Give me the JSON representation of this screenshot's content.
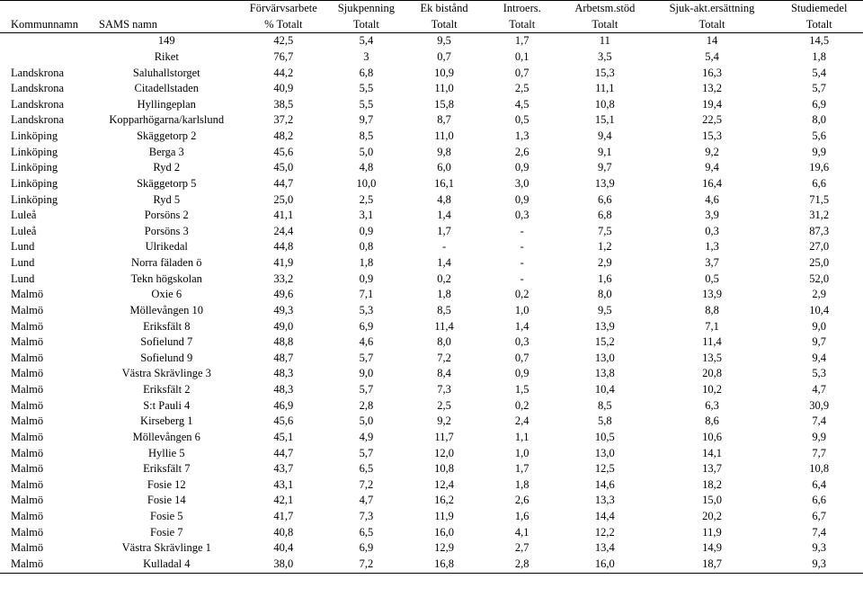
{
  "header1": [
    "",
    "",
    "Förvärvsarbete",
    "Sjukpenning",
    "Ek bistånd",
    "Introers.",
    "Arbetsm.stöd",
    "Sjuk-akt.ersättning",
    "Studiemedel"
  ],
  "header2": [
    "Kommunnamn",
    "SAMS namn",
    "% Totalt",
    "Totalt",
    "Totalt",
    "Totalt",
    "Totalt",
    "Totalt",
    "Totalt"
  ],
  "rows": [
    [
      "",
      "149",
      "42,5",
      "5,4",
      "9,5",
      "1,7",
      "11",
      "14",
      "14,5"
    ],
    [
      "",
      "Riket",
      "76,7",
      "3",
      "0,7",
      "0,1",
      "3,5",
      "5,4",
      "1,8"
    ],
    [
      "Landskrona",
      "Saluhallstorget",
      "44,2",
      "6,8",
      "10,9",
      "0,7",
      "15,3",
      "16,3",
      "5,4"
    ],
    [
      "Landskrona",
      "Citadellstaden",
      "40,9",
      "5,5",
      "11,0",
      "2,5",
      "11,1",
      "13,2",
      "5,7"
    ],
    [
      "Landskrona",
      "Hyllingeplan",
      "38,5",
      "5,5",
      "15,8",
      "4,5",
      "10,8",
      "19,4",
      "6,9"
    ],
    [
      "Landskrona",
      "Kopparhögarna/karlslund",
      "37,2",
      "9,7",
      "8,7",
      "0,5",
      "15,1",
      "22,5",
      "8,0"
    ],
    [
      "Linköping",
      "Skäggetorp 2",
      "48,2",
      "8,5",
      "11,0",
      "1,3",
      "9,4",
      "15,3",
      "5,6"
    ],
    [
      "Linköping",
      "Berga 3",
      "45,6",
      "5,0",
      "9,8",
      "2,6",
      "9,1",
      "9,2",
      "9,9"
    ],
    [
      "Linköping",
      "Ryd 2",
      "45,0",
      "4,8",
      "6,0",
      "0,9",
      "9,7",
      "9,4",
      "19,6"
    ],
    [
      "Linköping",
      "Skäggetorp 5",
      "44,7",
      "10,0",
      "16,1",
      "3,0",
      "13,9",
      "16,4",
      "6,6"
    ],
    [
      "Linköping",
      "Ryd 5",
      "25,0",
      "2,5",
      "4,8",
      "0,9",
      "6,6",
      "4,6",
      "71,5"
    ],
    [
      "Luleå",
      "Porsöns 2",
      "41,1",
      "3,1",
      "1,4",
      "0,3",
      "6,8",
      "3,9",
      "31,2"
    ],
    [
      "Luleå",
      "Porsöns 3",
      "24,4",
      "0,9",
      "1,7",
      "-",
      "7,5",
      "0,3",
      "87,3"
    ],
    [
      "Lund",
      "Ulrikedal",
      "44,8",
      "0,8",
      "-",
      "-",
      "1,2",
      "1,3",
      "27,0"
    ],
    [
      "Lund",
      "Norra fäladen ö",
      "41,9",
      "1,8",
      "1,4",
      "-",
      "2,9",
      "3,7",
      "25,0"
    ],
    [
      "Lund",
      "Tekn högskolan",
      "33,2",
      "0,9",
      "0,2",
      "-",
      "1,6",
      "0,5",
      "52,0"
    ],
    [
      "Malmö",
      "Oxie 6",
      "49,6",
      "7,1",
      "1,8",
      "0,2",
      "8,0",
      "13,9",
      "2,9"
    ],
    [
      "Malmö",
      "Möllevången 10",
      "49,3",
      "5,3",
      "8,5",
      "1,0",
      "9,5",
      "8,8",
      "10,4"
    ],
    [
      "Malmö",
      "Eriksfält 8",
      "49,0",
      "6,9",
      "11,4",
      "1,4",
      "13,9",
      "7,1",
      "9,0"
    ],
    [
      "Malmö",
      "Sofielund 7",
      "48,8",
      "4,6",
      "8,0",
      "0,3",
      "15,2",
      "11,4",
      "9,7"
    ],
    [
      "Malmö",
      "Sofielund 9",
      "48,7",
      "5,7",
      "7,2",
      "0,7",
      "13,0",
      "13,5",
      "9,4"
    ],
    [
      "Malmö",
      "Västra Skrävlinge 3",
      "48,3",
      "9,0",
      "8,4",
      "0,9",
      "13,8",
      "20,8",
      "5,3"
    ],
    [
      "Malmö",
      "Eriksfält 2",
      "48,3",
      "5,7",
      "7,3",
      "1,5",
      "10,4",
      "10,2",
      "4,7"
    ],
    [
      "Malmö",
      "S:t Pauli 4",
      "46,9",
      "2,8",
      "2,5",
      "0,2",
      "8,5",
      "6,3",
      "30,9"
    ],
    [
      "Malmö",
      "Kirseberg 1",
      "45,6",
      "5,0",
      "9,2",
      "2,4",
      "5,8",
      "8,6",
      "7,4"
    ],
    [
      "Malmö",
      "Möllevången 6",
      "45,1",
      "4,9",
      "11,7",
      "1,1",
      "10,5",
      "10,6",
      "9,9"
    ],
    [
      "Malmö",
      "Hyllie 5",
      "44,7",
      "5,7",
      "12,0",
      "1,0",
      "13,0",
      "14,1",
      "7,7"
    ],
    [
      "Malmö",
      "Eriksfält 7",
      "43,7",
      "6,5",
      "10,8",
      "1,7",
      "12,5",
      "13,7",
      "10,8"
    ],
    [
      "Malmö",
      "Fosie 12",
      "43,1",
      "7,2",
      "12,4",
      "1,8",
      "14,6",
      "18,2",
      "6,4"
    ],
    [
      "Malmö",
      "Fosie 14",
      "42,1",
      "4,7",
      "16,2",
      "2,6",
      "13,3",
      "15,0",
      "6,6"
    ],
    [
      "Malmö",
      "Fosie 5",
      "41,7",
      "7,3",
      "11,9",
      "1,6",
      "14,4",
      "20,2",
      "6,7"
    ],
    [
      "Malmö",
      "Fosie 7",
      "40,8",
      "6,5",
      "16,0",
      "4,1",
      "12,2",
      "11,9",
      "7,4"
    ],
    [
      "Malmö",
      "Västra Skrävlinge 1",
      "40,4",
      "6,9",
      "12,9",
      "2,7",
      "13,4",
      "14,9",
      "9,3"
    ],
    [
      "Malmö",
      "Kulladal 4",
      "38,0",
      "7,2",
      "16,8",
      "2,8",
      "16,0",
      "18,7",
      "9,3"
    ]
  ]
}
